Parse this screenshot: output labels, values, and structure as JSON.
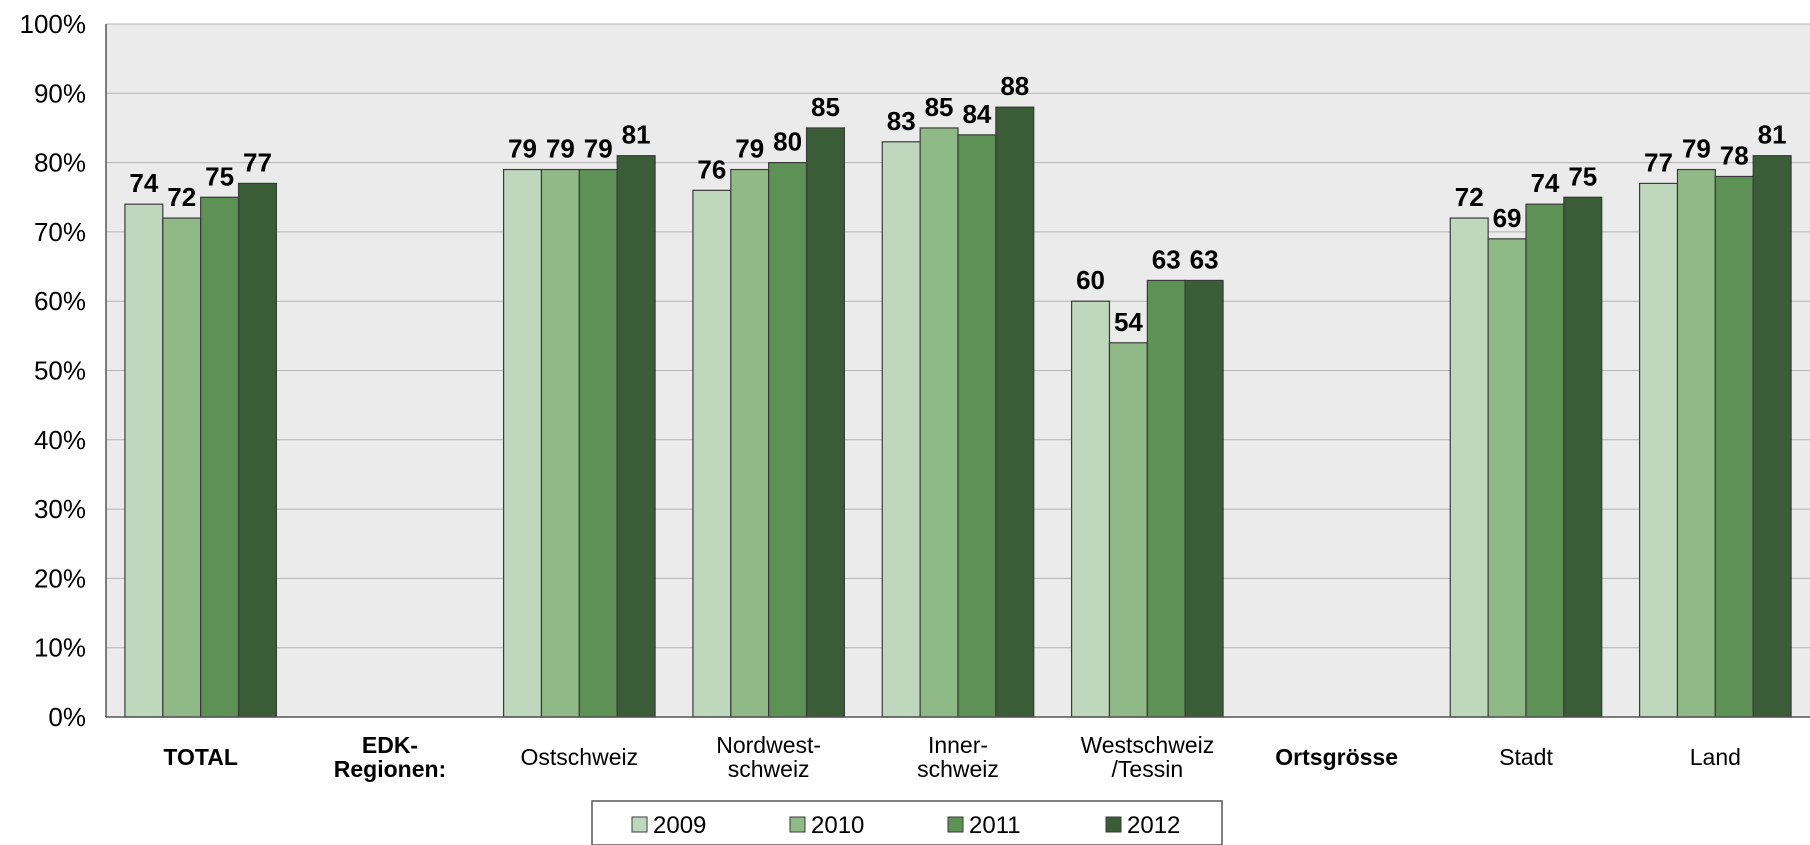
{
  "chart_data": {
    "type": "bar",
    "categories": [
      "TOTAL",
      "EDK-\nRegionen:",
      "Ostschweiz",
      "Nordwest-\nschweiz",
      "Inner-\nschweiz",
      "Westschweiz\n/Tessin",
      "Ortsgrösse",
      "Stadt",
      "Land"
    ],
    "bold_categories": [
      "TOTAL",
      "EDK-\nRegionen:",
      "Ortsgrösse"
    ],
    "series": [
      {
        "name": "2009",
        "color": "#bfd8bd",
        "values": [
          74,
          null,
          79,
          76,
          83,
          60,
          null,
          72,
          77
        ]
      },
      {
        "name": "2010",
        "color": "#8fba88",
        "values": [
          72,
          null,
          79,
          79,
          85,
          54,
          null,
          69,
          79
        ]
      },
      {
        "name": "2011",
        "color": "#5e9156",
        "values": [
          75,
          null,
          79,
          80,
          84,
          63,
          null,
          74,
          78
        ]
      },
      {
        "name": "2012",
        "color": "#3a5c36",
        "values": [
          77,
          null,
          81,
          85,
          88,
          63,
          null,
          75,
          81
        ]
      }
    ],
    "yticks": [
      "0%",
      "10%",
      "20%",
      "30%",
      "40%",
      "50%",
      "60%",
      "70%",
      "80%",
      "90%",
      "100%"
    ],
    "ylim": [
      0,
      100
    ],
    "grid": true,
    "legend_position": "bottom",
    "plot_background": "#ebebeb"
  }
}
